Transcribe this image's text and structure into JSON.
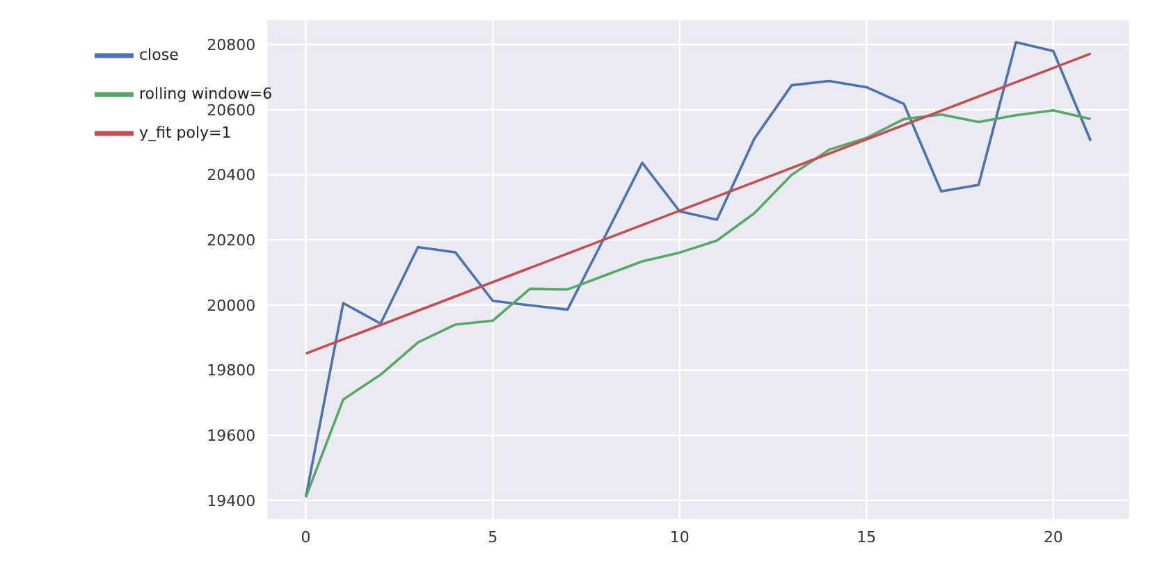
{
  "chart_data": {
    "type": "line",
    "xlim": [
      -1.05,
      22.05
    ],
    "xticks": [
      0,
      5,
      10,
      15,
      20
    ],
    "ylim": [
      19340,
      20877
    ],
    "yticks": [
      19400,
      19600,
      19800,
      20000,
      20200,
      20400,
      20600,
      20800
    ],
    "grid": true,
    "legend": "top left",
    "marker": "none",
    "line_style": "solid",
    "x": [
      0,
      1,
      2,
      3,
      4,
      5,
      6,
      7,
      8,
      9,
      10,
      11,
      12,
      13,
      14,
      15,
      16,
      17,
      18,
      19,
      20,
      21
    ],
    "series": [
      {
        "name": "close",
        "color": "#4c72b0",
        "values": [
          19410,
          20006,
          19943,
          20178,
          20162,
          20013,
          19999,
          19986,
          20210,
          20437,
          20288,
          20262,
          20511,
          20675,
          20688,
          20669,
          20618,
          20349,
          20369,
          20807,
          20780,
          20504
        ]
      },
      {
        "name": "rolling window=6",
        "color": "#55a868",
        "values": [
          19410,
          19710,
          19786,
          19885,
          19940,
          19952,
          20050,
          20048,
          20091,
          20134,
          20161,
          20198,
          20282,
          20400,
          20477,
          20513,
          20571,
          20585,
          20562,
          20583,
          20598,
          20571
        ]
      },
      {
        "name": "y_fit poly=1",
        "color": "#c44e52",
        "x": [
          0,
          21
        ],
        "values": [
          19851,
          20772
        ]
      }
    ]
  }
}
